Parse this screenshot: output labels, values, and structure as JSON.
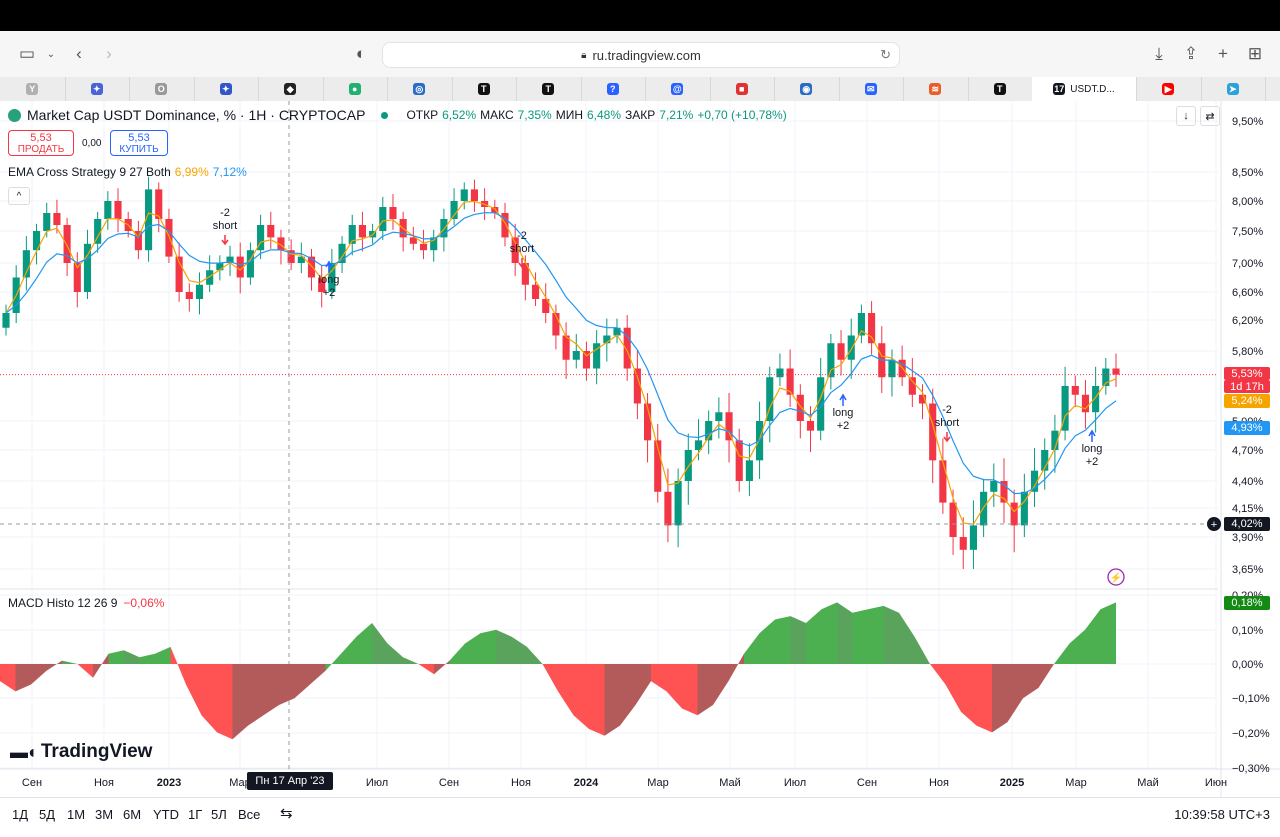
{
  "browser": {
    "url": "ru.tradingview.com",
    "active_tab_title": "USDT.D...",
    "tab_glyphs": [
      "Y",
      "✦",
      "O",
      "✦",
      "◆",
      "●",
      "◎",
      "T",
      "T",
      "?",
      "@",
      "■",
      "◉",
      "✉",
      "≋",
      "T",
      "",
      "▶",
      "➤"
    ]
  },
  "header": {
    "symbol_title": "Market Cap USDT Dominance, % · 1H · CRYPTOCAP",
    "ohlc": {
      "o_label": "ОТКР",
      "o_value": "6,52%",
      "h_label": "МАКС",
      "h_value": "7,35%",
      "l_label": "МИН",
      "l_value": "6,48%",
      "c_label": "ЗАКР",
      "c_value": "7,21%",
      "change": "+0,70 (+10,78%)"
    },
    "sell_price": "5,53",
    "sell_label": "ПРОДАТЬ",
    "spread": "0,00",
    "buy_price": "5,53",
    "buy_label": "КУПИТЬ"
  },
  "ema_legend": {
    "name": "EMA Cross Strategy 9 27 Both",
    "v1": "6,99%",
    "v2": "7,12%"
  },
  "macd_legend": {
    "name": "MACD Histo 12 26 9",
    "value": "−0,06%"
  },
  "brand": "TradingView",
  "price_axis": {
    "upper_ticks": [
      "9,50%",
      "8,50%",
      "8,00%",
      "7,50%",
      "7,00%",
      "6,60%",
      "6,20%",
      "5,80%",
      "5,00%",
      "4,70%",
      "4,40%",
      "4,15%",
      "3,90%",
      "3,65%"
    ],
    "lower_ticks": [
      "0,20%",
      "0,10%",
      "0,00%",
      "−0,10%",
      "−0,20%",
      "−0,30%"
    ],
    "tag_last": "5,53%",
    "tag_countdown": "1d 17h",
    "tag_ema_fast": "5,24%",
    "tag_ema_slow": "4,93%",
    "tag_crosshair": "4,02%",
    "tag_macd": "0,18%"
  },
  "time_axis": [
    "Сен",
    "Ноя",
    "2023",
    "Мар",
    "Июл",
    "Сен",
    "Ноя",
    "2024",
    "Мар",
    "Май",
    "Июл",
    "Сен",
    "Ноя",
    "2025",
    "Мар",
    "Май",
    "Июн"
  ],
  "crosshair_date": "Пн 17 Апр '23",
  "signals": [
    {
      "line1": "-2",
      "line2": "short"
    },
    {
      "line1": "long",
      "line2": "+2"
    },
    {
      "line1": "-2",
      "line2": "short"
    },
    {
      "line1": "long",
      "line2": "+2"
    },
    {
      "line1": "-2",
      "line2": "short"
    },
    {
      "line1": "long",
      "line2": "+2"
    }
  ],
  "periods": [
    "1Д",
    "5Д",
    "1М",
    "3М",
    "6М",
    "YTD",
    "1Г",
    "5Л",
    "Все"
  ],
  "clock": "10:39:58 UTC+3",
  "colors": {
    "up": "#089981",
    "down": "#f23645",
    "ema_fast": "#f7a400",
    "ema_slow": "#2196f3",
    "macd_up": "#4caf50",
    "macd_down": "#ff5252"
  },
  "chart_data": {
    "type": "candlestick",
    "title": "Market Cap USDT Dominance, %",
    "ylabel": "%",
    "xlabel": "",
    "ylim": [
      3.5,
      9.6
    ],
    "candles_close": [
      6.3,
      6.8,
      7.2,
      7.5,
      7.8,
      7.6,
      7.0,
      6.6,
      7.3,
      7.7,
      8.0,
      7.7,
      7.5,
      7.2,
      8.2,
      7.7,
      7.1,
      6.6,
      6.5,
      6.7,
      6.9,
      7.0,
      7.1,
      6.8,
      7.2,
      7.6,
      7.4,
      7.2,
      7.0,
      7.1,
      6.8,
      6.6,
      7.0,
      7.3,
      7.6,
      7.4,
      7.5,
      7.9,
      7.7,
      7.4,
      7.3,
      7.2,
      7.4,
      7.7,
      8.0,
      8.2,
      8.0,
      7.9,
      7.8,
      7.4,
      7.0,
      6.7,
      6.5,
      6.3,
      6.0,
      5.7,
      5.8,
      5.6,
      5.9,
      6.0,
      6.1,
      5.6,
      5.2,
      4.8,
      4.3,
      4.0,
      4.4,
      4.7,
      4.8,
      5.0,
      5.1,
      4.8,
      4.4,
      4.6,
      5.0,
      5.5,
      5.6,
      5.3,
      5.0,
      4.9,
      5.5,
      5.9,
      5.7,
      6.0,
      6.3,
      5.9,
      5.5,
      5.7,
      5.5,
      5.3,
      5.2,
      4.6,
      4.2,
      3.9,
      3.8,
      4.0,
      4.3,
      4.4,
      4.2,
      4.0,
      4.3,
      4.5,
      4.7,
      4.9,
      5.4,
      5.3,
      5.1,
      5.4,
      5.6,
      5.53
    ],
    "ema_fast_last": 5.24,
    "ema_slow_last": 4.93,
    "macd_hist": [
      -0.05,
      -0.08,
      -0.06,
      -0.02,
      0.01,
      0.0,
      -0.04,
      0.03,
      0.04,
      0.02,
      0.03,
      0.05,
      -0.06,
      -0.15,
      -0.2,
      -0.22,
      -0.18,
      -0.15,
      -0.12,
      -0.1,
      -0.06,
      -0.02,
      0.03,
      0.08,
      0.12,
      0.06,
      0.02,
      0.0,
      -0.03,
      0.01,
      0.06,
      0.09,
      0.1,
      0.08,
      0.05,
      0.0,
      -0.08,
      -0.15,
      -0.19,
      -0.21,
      -0.18,
      -0.12,
      -0.05,
      -0.08,
      -0.13,
      -0.15,
      -0.12,
      -0.05,
      0.03,
      0.09,
      0.13,
      0.14,
      0.12,
      0.16,
      0.18,
      0.15,
      0.16,
      0.17,
      0.15,
      0.08,
      0.0,
      -0.06,
      -0.14,
      -0.18,
      -0.2,
      -0.17,
      -0.1,
      -0.07,
      0.0,
      0.06,
      0.1,
      0.16,
      0.18
    ]
  }
}
